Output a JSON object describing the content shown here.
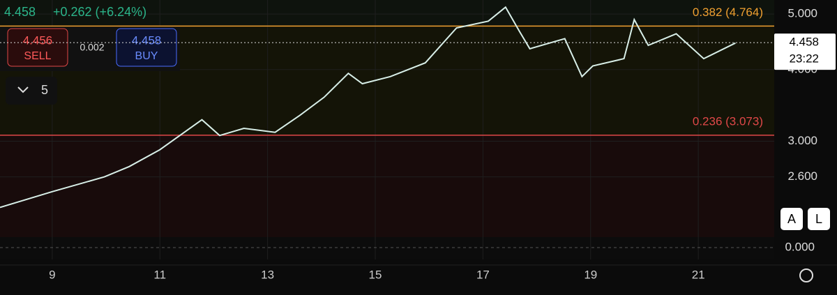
{
  "chart_data": {
    "type": "line",
    "header": {
      "price": "4.458",
      "change": "+0.262 (+6.24%)"
    },
    "trade": {
      "sell_price": "4.456",
      "sell_label": "SELL",
      "spread": "0.002",
      "buy_price": "4.458",
      "buy_label": "BUY"
    },
    "interval": "5",
    "buttons": [
      "A",
      "L"
    ],
    "x": [
      8.03,
      9,
      9.97,
      10.43,
      11,
      11.78,
      12.11,
      12.56,
      13.14,
      13.6,
      14.05,
      14.5,
      14.76,
      15.28,
      15.93,
      16.51,
      17.1,
      17.42,
      17.68,
      17.87,
      18.52,
      18.84,
      19.04,
      19.62,
      19.81,
      20.07,
      20.59,
      21.1,
      21.69
    ],
    "series": [
      {
        "color": "#d8efe8",
        "values": [
          2.3,
          2.45,
          2.6,
          2.71,
          2.9,
          3.27,
          3.07,
          3.16,
          3.11,
          3.33,
          3.58,
          3.94,
          3.78,
          3.89,
          4.11,
          4.73,
          4.86,
          5.14,
          4.66,
          4.35,
          4.53,
          3.89,
          4.06,
          4.18,
          4.89,
          4.41,
          4.62,
          4.18,
          4.45
        ]
      }
    ],
    "xlim": [
      8.03,
      22.41
    ],
    "xticks": [
      9,
      11,
      13,
      15,
      17,
      19,
      21
    ],
    "ylim": [
      2.07,
      5.29
    ],
    "log_scale": true,
    "yticks": [
      {
        "value": 5,
        "label": "5.000"
      },
      {
        "value": 4,
        "label": "4.000"
      },
      {
        "value": 3,
        "label": "3.000"
      },
      {
        "value": 2.6,
        "label": "2.600"
      }
    ],
    "levels": [
      {
        "label": "0.382 (4.764)",
        "value": 4.764,
        "color": "#f0a030"
      },
      {
        "label": "0.236 (3.073)",
        "value": 3.073,
        "color": "#e04848"
      }
    ],
    "last": {
      "value": 4.458,
      "label": "4.458",
      "timer": "23:22"
    },
    "oscillator_label": "0.000"
  }
}
